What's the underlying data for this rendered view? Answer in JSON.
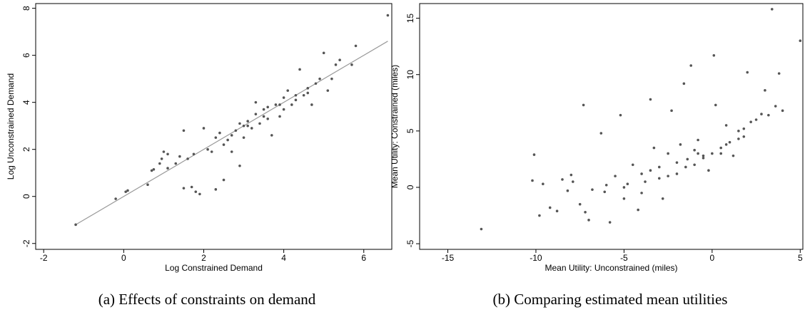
{
  "chart_data": [
    {
      "type": "scatter",
      "caption": "(a) Effects of constraints on demand",
      "x_label": "Log Constrained Demand",
      "y_label": "Log Unconstrained Demand",
      "color": "#555555",
      "line_color": "#999999",
      "xlim": [
        -2.2,
        6.7
      ],
      "ylim": [
        -2.25,
        8.2
      ],
      "xticks": [
        -2,
        0,
        2,
        4,
        6
      ],
      "yticks": [
        -2,
        0,
        2,
        4,
        6,
        8
      ],
      "fit_line": {
        "x": [
          -1.2,
          6.6
        ],
        "y": [
          -1.2,
          6.6
        ]
      },
      "x": [
        -1.2,
        -0.2,
        0.05,
        0.1,
        0.6,
        0.7,
        0.75,
        0.9,
        0.95,
        1.0,
        1.1,
        1.1,
        1.3,
        1.4,
        1.5,
        1.5,
        1.7,
        1.6,
        1.75,
        1.8,
        1.9,
        2.0,
        2.1,
        2.2,
        2.3,
        2.3,
        2.4,
        2.5,
        2.5,
        2.6,
        2.7,
        2.8,
        2.9,
        3.0,
        3.0,
        3.1,
        3.2,
        3.3,
        3.3,
        3.4,
        3.5,
        3.6,
        3.7,
        3.8,
        3.9,
        4.0,
        4.0,
        4.1,
        4.2,
        4.3,
        4.4,
        4.5,
        4.6,
        4.7,
        4.8,
        4.9,
        5.0,
        5.1,
        5.2,
        5.3,
        5.4,
        5.7,
        5.8,
        6.6,
        2.7,
        3.1,
        3.5,
        3.9,
        4.3,
        2.9,
        3.6,
        4.6
      ],
      "y": [
        -1.2,
        -0.1,
        0.2,
        0.25,
        0.5,
        1.1,
        1.15,
        1.4,
        1.6,
        1.9,
        1.8,
        1.2,
        1.4,
        1.7,
        2.8,
        0.35,
        0.4,
        1.6,
        1.8,
        0.2,
        0.1,
        2.9,
        2.0,
        1.9,
        0.3,
        2.5,
        2.7,
        0.7,
        2.2,
        2.4,
        1.9,
        2.8,
        1.3,
        3.0,
        2.5,
        3.2,
        2.9,
        3.5,
        4.0,
        3.1,
        3.7,
        3.3,
        2.6,
        3.9,
        3.4,
        4.2,
        3.7,
        4.5,
        3.9,
        4.1,
        5.4,
        4.3,
        4.6,
        3.9,
        4.8,
        5.0,
        6.1,
        4.5,
        5.0,
        5.6,
        5.8,
        5.6,
        6.4,
        7.7,
        2.6,
        3.0,
        3.4,
        3.9,
        4.3,
        3.1,
        3.8,
        4.4
      ]
    },
    {
      "type": "scatter",
      "caption": "(b) Comparing estimated mean utilities",
      "x_label": "Mean Utility: Unconstrained (miles)",
      "y_label": "Mean Utility: Constrained (miles)",
      "color": "#555555",
      "xlim": [
        -16.6,
        5.15
      ],
      "ylim": [
        -5.5,
        16.3
      ],
      "xticks": [
        -15,
        -10,
        -5,
        0,
        5
      ],
      "yticks": [
        -5,
        0,
        5,
        10,
        15
      ],
      "x": [
        -13.1,
        -10.1,
        -10.2,
        -9.8,
        -9.6,
        -9.2,
        -8.8,
        -8.5,
        -8.0,
        -7.9,
        -7.3,
        -7.2,
        -7.0,
        -6.8,
        -6.3,
        -6.1,
        -5.8,
        -5.5,
        -5.2,
        -5.0,
        -4.8,
        -4.5,
        -4.2,
        -4.0,
        -3.8,
        -3.5,
        -3.3,
        -3.0,
        -2.8,
        -2.5,
        -2.3,
        -2.0,
        -1.8,
        -1.6,
        -1.4,
        -1.2,
        -1.0,
        -0.8,
        -0.5,
        -0.2,
        0.0,
        0.2,
        0.1,
        0.5,
        0.8,
        1.0,
        1.2,
        1.5,
        1.8,
        2.0,
        2.2,
        2.5,
        2.8,
        3.0,
        3.2,
        3.4,
        3.6,
        3.8,
        4.0,
        5.0,
        -6,
        -4,
        -3,
        -2,
        -1,
        -0.5,
        0.5,
        1.5,
        -5,
        -3.5,
        -2.5,
        -1.5,
        -0.8,
        0.8,
        1.8,
        -7.5,
        -8.2
      ],
      "y": [
        -3.7,
        2.9,
        0.6,
        -2.5,
        0.3,
        -1.8,
        -2.1,
        0.7,
        1.1,
        0.5,
        7.3,
        -2.2,
        -2.9,
        -0.2,
        4.8,
        -0.4,
        -3.1,
        1.0,
        6.4,
        -1.0,
        0.3,
        2.0,
        -2.0,
        1.2,
        0.5,
        7.8,
        3.5,
        1.8,
        -1.0,
        3.0,
        6.8,
        1.2,
        3.8,
        9.2,
        2.5,
        10.8,
        2.0,
        4.2,
        2.6,
        1.5,
        3.0,
        7.3,
        11.7,
        3.5,
        5.5,
        4.0,
        2.8,
        5.0,
        4.5,
        10.2,
        5.8,
        6.0,
        6.5,
        8.6,
        6.4,
        15.8,
        7.2,
        10.1,
        6.8,
        13.0,
        0.2,
        -0.5,
        0.8,
        2.2,
        3.3,
        2.8,
        3.0,
        4.3,
        0.0,
        1.5,
        1.0,
        1.8,
        3.0,
        3.8,
        5.2,
        -1.5,
        -0.3
      ]
    }
  ]
}
